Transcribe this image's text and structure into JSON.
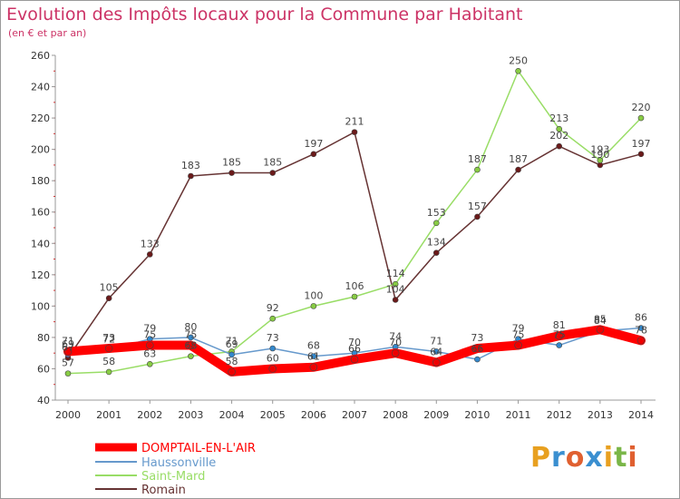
{
  "title": "Evolution des Impôts locaux pour la Commune par Habitant",
  "subtitle": "(en € et par an)",
  "logo": "Proxiti",
  "chart_data": {
    "type": "line",
    "x": [
      2000,
      2001,
      2002,
      2003,
      2004,
      2005,
      2006,
      2007,
      2008,
      2009,
      2010,
      2011,
      2012,
      2013,
      2014
    ],
    "ylim": [
      40,
      260
    ],
    "yticks": [
      40,
      60,
      80,
      100,
      120,
      140,
      160,
      180,
      200,
      220,
      240,
      260
    ],
    "grid": false,
    "legend_position": "bottom-left",
    "series": [
      {
        "name": "DOMPTAIL-EN-L'AIR",
        "color": "#ff0000",
        "width": 10,
        "values": [
          71,
          73,
          75,
          75,
          58,
          60,
          61,
          66,
          70,
          64,
          73,
          75,
          81,
          85,
          78
        ],
        "labels": [
          71,
          73,
          75,
          75,
          58,
          60,
          61,
          66,
          70,
          64,
          73,
          75,
          81,
          85,
          78
        ]
      },
      {
        "name": "Haussonville",
        "color": "#6699cc",
        "width": 1.5,
        "values": [
          69,
          72,
          79,
          80,
          69,
          73,
          68,
          70,
          74,
          71,
          66,
          79,
          75,
          84,
          86
        ],
        "labels": [
          69,
          72,
          79,
          80,
          69,
          73,
          68,
          70,
          74,
          71,
          66,
          79,
          75,
          84,
          86
        ]
      },
      {
        "name": "Saint-Mard",
        "color": "#99dd66",
        "width": 1.5,
        "values": [
          57,
          58,
          63,
          68,
          71,
          92,
          100,
          106,
          114,
          153,
          187,
          250,
          213,
          193,
          220
        ],
        "labels": [
          57,
          58,
          63,
          68,
          71,
          92,
          100,
          106,
          114,
          153,
          187,
          250,
          213,
          193,
          220
        ]
      },
      {
        "name": "Romain",
        "color": "#663333",
        "width": 1.5,
        "values": [
          67,
          105,
          133,
          183,
          185,
          185,
          197,
          211,
          104,
          134,
          157,
          187,
          202,
          190,
          197
        ],
        "labels": [
          67,
          105,
          133,
          183,
          185,
          185,
          197,
          211,
          104,
          134,
          157,
          187,
          202,
          190,
          197
        ]
      }
    ]
  }
}
